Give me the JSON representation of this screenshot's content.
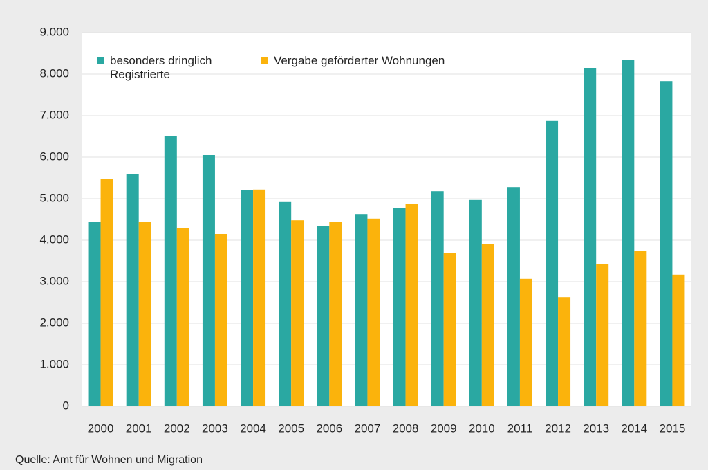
{
  "chart_data": {
    "type": "bar",
    "categories": [
      "2000",
      "2001",
      "2002",
      "2003",
      "2004",
      "2005",
      "2006",
      "2007",
      "2008",
      "2009",
      "2010",
      "2011",
      "2012",
      "2013",
      "2014",
      "2015"
    ],
    "series": [
      {
        "name": "besonders dringlich Registrierte",
        "color": "#2aa8a2",
        "values": [
          4450,
          5600,
          6500,
          6050,
          5200,
          4920,
          4350,
          4630,
          4770,
          5180,
          4970,
          5280,
          6870,
          8150,
          8350,
          7830
        ]
      },
      {
        "name": "Vergabe geförderter Wohnungen",
        "color": "#fbb30c",
        "values": [
          5480,
          4450,
          4300,
          4150,
          5220,
          4480,
          4450,
          4520,
          4870,
          3700,
          3900,
          3070,
          2630,
          3430,
          3750,
          3170
        ]
      }
    ],
    "ylim": [
      0,
      9000
    ],
    "yticks": [
      0,
      {
        "value": 1000,
        "label": "1.000"
      },
      {
        "value": 2000,
        "label": "2.000"
      },
      {
        "value": 3000,
        "label": "3.000"
      },
      {
        "value": 4000,
        "label": "4.000"
      },
      {
        "value": 5000,
        "label": "5.000"
      },
      {
        "value": 6000,
        "label": "6.000"
      },
      {
        "value": 7000,
        "label": "7.000"
      },
      {
        "value": 8000,
        "label": "8.000"
      },
      {
        "value": 9000,
        "label": "9.000"
      }
    ],
    "grid": true,
    "legend": "top-left",
    "source": "Quelle: Amt für Wohnen und Migration"
  }
}
